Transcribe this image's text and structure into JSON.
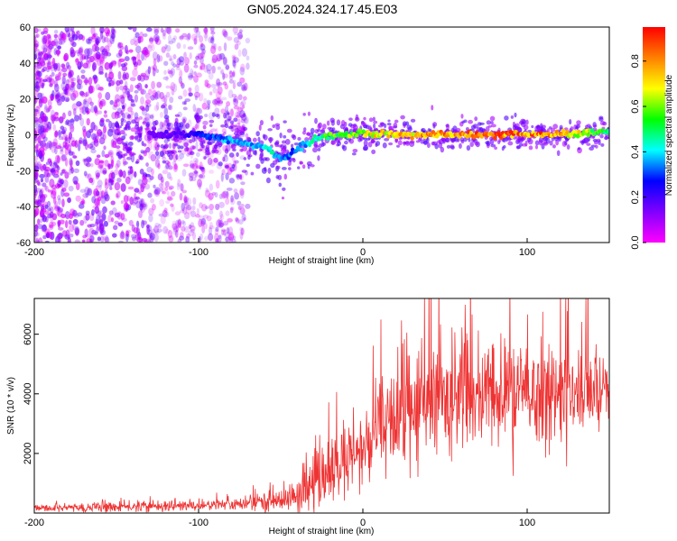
{
  "chart_data": [
    {
      "type": "heatmap",
      "title": "GN05.2024.324.17.45.E03",
      "xlabel": "Height of straight line (km)",
      "ylabel": "Frequency (Hz)",
      "xlim": [
        -200,
        150
      ],
      "ylim": [
        -60,
        60
      ],
      "xticks": [
        -200,
        -100,
        0,
        100
      ],
      "yticks": [
        60,
        40,
        20,
        0,
        -20,
        -40,
        -60
      ],
      "colorbar": {
        "label": "Normalized spectral amplitude",
        "range": [
          0.0,
          0.95
        ],
        "ticks": [
          0.0,
          0.2,
          0.4,
          0.6,
          0.8
        ],
        "colormap": [
          "#ff00ff",
          "#8000ff",
          "#0000ff",
          "#00ffff",
          "#00ff00",
          "#ffff00",
          "#ff8000",
          "#ff0000"
        ]
      },
      "ridge": {
        "description": "dominant frequency versus height",
        "x": [
          -130,
          -110,
          -100,
          -90,
          -80,
          -70,
          -60,
          -55,
          -50,
          -45,
          -40,
          -35,
          -30,
          -20,
          -10,
          0,
          10,
          20,
          40,
          60,
          80,
          100,
          120,
          140,
          150
        ],
        "y": [
          0,
          0,
          0,
          -1,
          -3,
          -5,
          -7,
          -10,
          -14,
          -12,
          -7,
          -5,
          -3,
          -1,
          0,
          1,
          0.5,
          0,
          0,
          0,
          0,
          0,
          0,
          1,
          2
        ],
        "amplitude": [
          0.15,
          0.2,
          0.3,
          0.35,
          0.4,
          0.4,
          0.45,
          0.45,
          0.4,
          0.35,
          0.35,
          0.4,
          0.5,
          0.6,
          0.65,
          0.7,
          0.75,
          0.8,
          0.85,
          0.9,
          0.9,
          0.9,
          0.88,
          0.6,
          0.55
        ]
      },
      "noise_region_x": [
        -200,
        -60
      ]
    },
    {
      "type": "line",
      "xlabel": "Height of straight line (km)",
      "ylabel": "SNR (10 * v/v)",
      "xlim": [
        -200,
        150
      ],
      "ylim": [
        0,
        7200
      ],
      "xticks": [
        -200,
        -100,
        0,
        100
      ],
      "yticks": [
        2000,
        4000,
        6000
      ],
      "color": "#ee3333",
      "envelope": {
        "x": [
          -200,
          -150,
          -100,
          -70,
          -60,
          -50,
          -40,
          -30,
          -20,
          -10,
          0,
          10,
          20,
          30,
          40,
          50,
          70,
          90,
          110,
          130,
          150
        ],
        "mean": [
          150,
          200,
          250,
          300,
          400,
          450,
          550,
          900,
          1300,
          1700,
          2100,
          2600,
          3100,
          3500,
          3700,
          3800,
          3900,
          4000,
          3950,
          4000,
          4100
        ],
        "spread": [
          100,
          150,
          150,
          200,
          250,
          350,
          450,
          700,
          900,
          1000,
          1100,
          1300,
          1600,
          1800,
          1800,
          1700,
          1600,
          1500,
          1400,
          1300,
          1000
        ]
      }
    }
  ]
}
